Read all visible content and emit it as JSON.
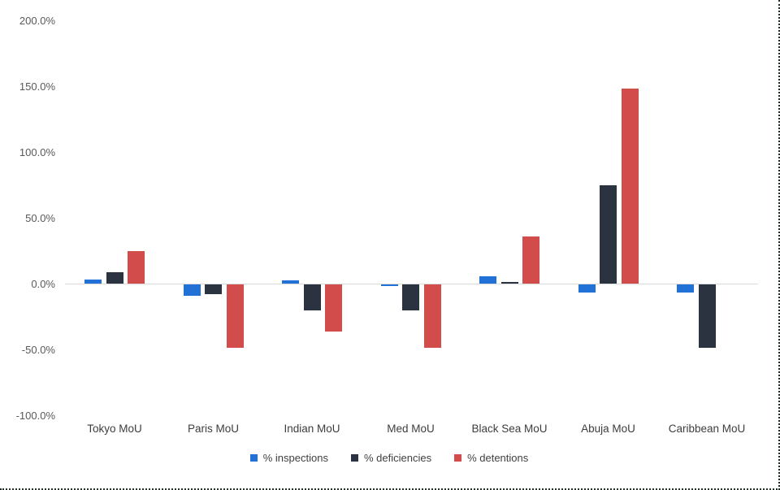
{
  "chart_data": {
    "type": "bar",
    "title": "",
    "xlabel": "",
    "ylabel": "",
    "categories": [
      "Tokyo MoU",
      "Paris MoU",
      "Indian MoU",
      "Med MoU",
      "Black Sea MoU",
      "Abuja MoU",
      "Caribbean MoU"
    ],
    "series": [
      {
        "name": "% inspections",
        "color": "#2171d7",
        "values": [
          3,
          -8.5,
          2.5,
          -1.5,
          5.5,
          -6,
          -6
        ]
      },
      {
        "name": "% deficiencies",
        "color": "#2a333f",
        "values": [
          8.5,
          -7.5,
          -20,
          -20,
          1.5,
          75,
          -48
        ]
      },
      {
        "name": "% detentions",
        "color": "#d14c4a",
        "values": [
          25,
          -48,
          -36,
          -48,
          36,
          148,
          0
        ]
      }
    ],
    "ylim": [
      -100,
      200
    ],
    "ytick_values": [
      200,
      150,
      100,
      50,
      0,
      -50,
      -100
    ],
    "yticks": [
      "200.0%",
      "150.0%",
      "100.0%",
      "50.0%",
      "0.0%",
      "-50.0%",
      "-100.0%"
    ],
    "grid": false,
    "legend_position": "bottom",
    "axis_line_color": "#d9d9d9",
    "tick_label_color": "#595959",
    "category_label_color": "#3d3d3d"
  }
}
